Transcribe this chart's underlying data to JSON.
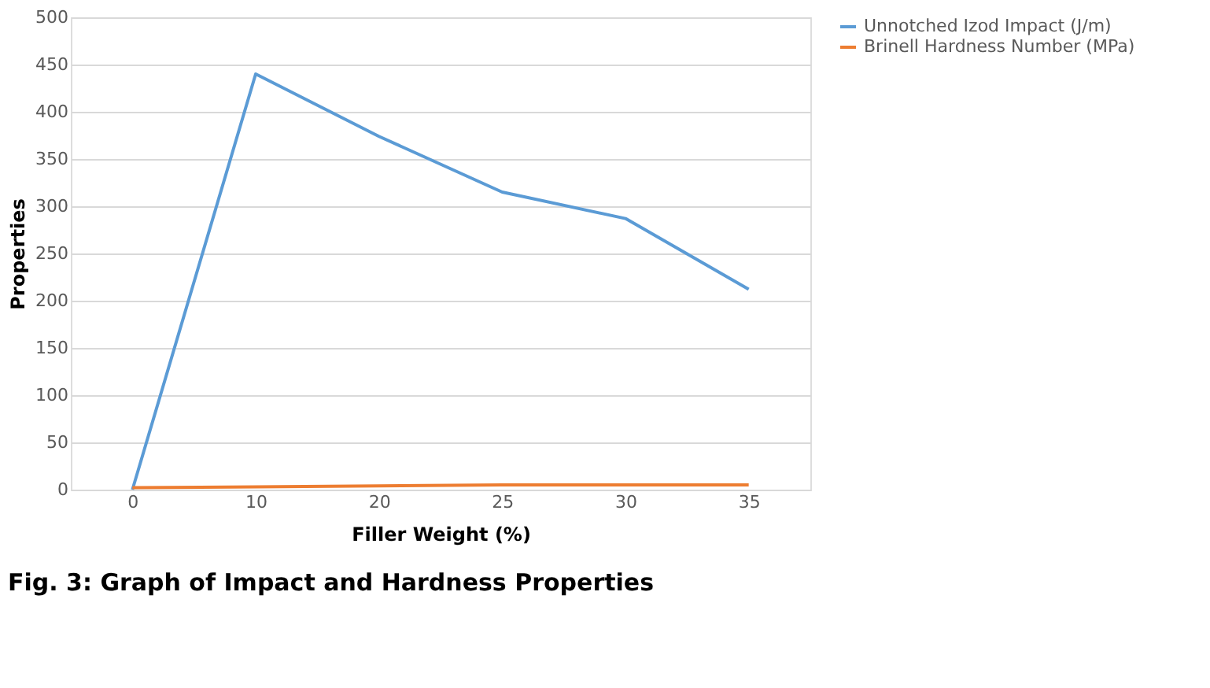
{
  "chart_data": {
    "type": "line",
    "title": "Fig. 3: Graph of Impact and Hardness Properties",
    "xlabel": "Filler Weight (%)",
    "ylabel": "Properties",
    "categories": [
      "0",
      "10",
      "20",
      "25",
      "30",
      "35"
    ],
    "series": [
      {
        "name": "Unnotched Izod Impact (J/m)",
        "color": "#5b9bd5",
        "values": [
          0,
          440,
          374,
          315,
          287,
          212
        ]
      },
      {
        "name": "Brinell Hardness Number (MPa)",
        "color": "#ed7d31",
        "values": [
          2,
          3,
          4,
          5,
          5,
          5
        ]
      }
    ],
    "ylim": [
      0,
      500
    ],
    "yticks": [
      0,
      50,
      100,
      150,
      200,
      250,
      300,
      350,
      400,
      450,
      500
    ],
    "grid": "y",
    "legend": "right",
    "marker": "none",
    "line_style": "solid"
  }
}
